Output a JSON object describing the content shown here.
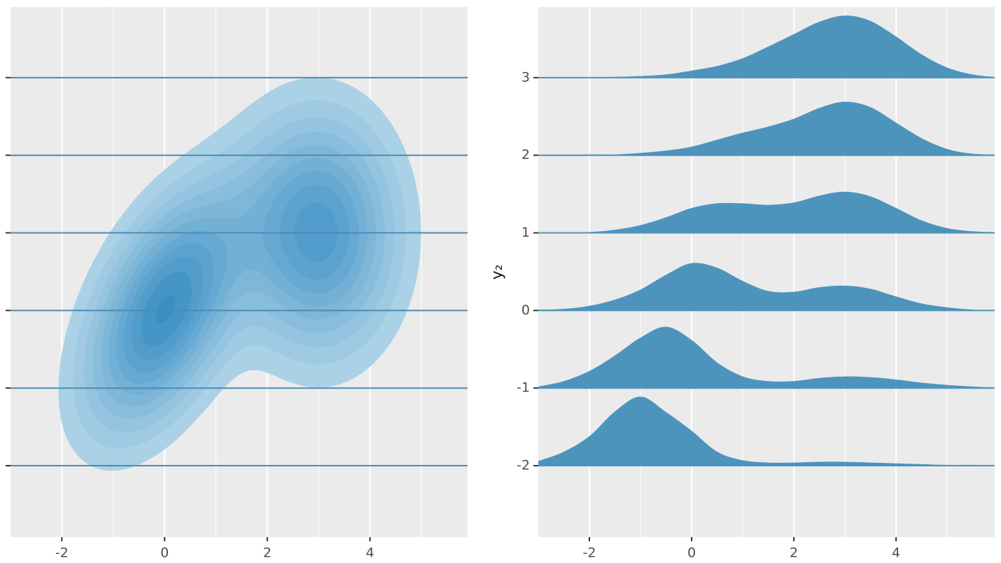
{
  "chart_data": [
    {
      "type": "density2d",
      "xlim": [
        -3,
        5.9
      ],
      "ylim": [
        -2.92,
        3.91
      ],
      "xticks": [
        -2,
        0,
        2,
        4
      ],
      "minor_xticks": [
        -1,
        1,
        3,
        5
      ],
      "yticks": [
        -2,
        -1,
        0,
        1,
        2,
        3
      ],
      "ytick_labels": false,
      "hlines": [
        -2,
        -1,
        0,
        1,
        2,
        3
      ],
      "hline_color": "#4a8bb8",
      "components": [
        {
          "weight": 0.5,
          "mean": [
            0,
            0
          ],
          "sd": [
            1,
            1
          ],
          "rho": 0.5
        },
        {
          "weight": 0.5,
          "mean": [
            3,
            1
          ],
          "sd": [
            1,
            1
          ],
          "rho": 0
        }
      ],
      "levels": [
        0.011,
        0.019,
        0.027,
        0.035,
        0.043,
        0.051,
        0.059,
        0.067,
        0.075,
        0.083,
        0.091
      ],
      "fill_low": "#abd1e6",
      "fill_high": "#3a8fc4"
    },
    {
      "type": "ridgeline",
      "ylabel": "y₂",
      "xlim": [
        -3,
        5.93
      ],
      "ylim": [
        -2.92,
        3.91
      ],
      "xticks": [
        -2,
        0,
        2,
        4
      ],
      "minor_xticks": [
        -1,
        1,
        3,
        5
      ],
      "yticks": [
        -2,
        -1,
        0,
        1,
        2,
        3
      ],
      "color": "#4d94bd",
      "x": [
        -3,
        -2.5,
        -2,
        -1.5,
        -1,
        -0.5,
        0,
        0.5,
        1,
        1.5,
        2,
        2.5,
        3,
        3.5,
        4,
        4.5,
        5,
        5.5,
        5.9
      ],
      "series": [
        {
          "baseline": 3,
          "values": [
            0,
            0,
            0,
            0.01,
            0.02,
            0.04,
            0.09,
            0.15,
            0.25,
            0.4,
            0.56,
            0.72,
            0.8,
            0.73,
            0.53,
            0.3,
            0.13,
            0.04,
            0.01
          ]
        },
        {
          "baseline": 2,
          "values": [
            0,
            0,
            0.01,
            0.01,
            0.03,
            0.06,
            0.11,
            0.2,
            0.29,
            0.37,
            0.47,
            0.61,
            0.69,
            0.62,
            0.42,
            0.22,
            0.08,
            0.02,
            0.01
          ]
        },
        {
          "baseline": 1,
          "values": [
            0,
            0,
            0.01,
            0.04,
            0.1,
            0.2,
            0.32,
            0.38,
            0.38,
            0.36,
            0.39,
            0.48,
            0.53,
            0.47,
            0.32,
            0.16,
            0.06,
            0.02,
            0.01
          ]
        },
        {
          "baseline": 0,
          "values": [
            0.01,
            0.02,
            0.06,
            0.14,
            0.27,
            0.46,
            0.61,
            0.55,
            0.38,
            0.25,
            0.24,
            0.3,
            0.32,
            0.28,
            0.18,
            0.09,
            0.04,
            0.01,
            0
          ]
        },
        {
          "baseline": -1,
          "values": [
            0.02,
            0.09,
            0.22,
            0.42,
            0.65,
            0.79,
            0.62,
            0.33,
            0.15,
            0.09,
            0.09,
            0.13,
            0.15,
            0.14,
            0.11,
            0.07,
            0.04,
            0.02,
            0.01
          ]
        },
        {
          "baseline": -2,
          "values": [
            0.06,
            0.18,
            0.38,
            0.7,
            0.89,
            0.69,
            0.45,
            0.18,
            0.07,
            0.04,
            0.04,
            0.05,
            0.05,
            0.04,
            0.03,
            0.02,
            0.01,
            0.01,
            0
          ]
        }
      ]
    }
  ]
}
